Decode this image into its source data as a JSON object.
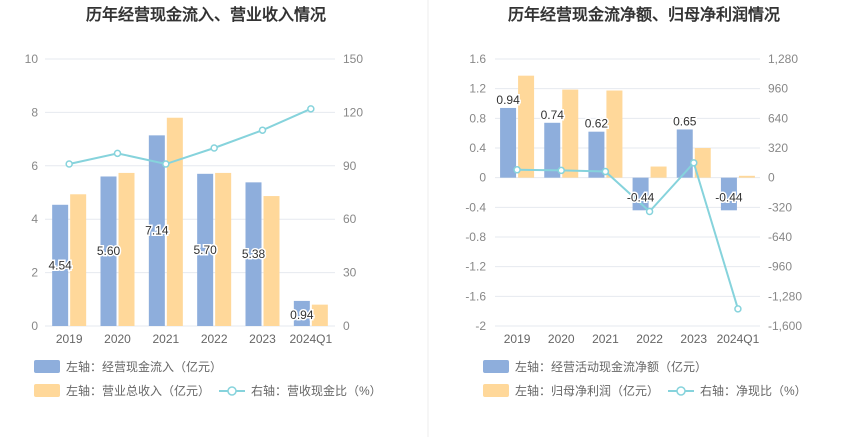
{
  "colors": {
    "bar_primary": "#8EAEDC",
    "bar_secondary": "#FFD89A",
    "line": "#86D3DC",
    "grid": "#E6E9EF",
    "divider": "#EEEEEE"
  },
  "chart_data": [
    {
      "type": "bar",
      "title": "历年经营现金流入、营业收入情况",
      "categories": [
        "2019",
        "2020",
        "2021",
        "2022",
        "2023",
        "2024Q1"
      ],
      "ylim_left": [
        0,
        10
      ],
      "yticks_left": [
        0,
        2,
        4,
        6,
        8,
        10
      ],
      "ylim_right": [
        0,
        150
      ],
      "yticks_right": [
        0,
        30,
        60,
        90,
        120,
        150
      ],
      "grid": true,
      "legend_position": "bottom-left",
      "series": [
        {
          "name": "左轴：经营现金流入（亿元）",
          "type": "bar",
          "axis": "left",
          "values": [
            4.54,
            5.6,
            7.14,
            5.7,
            5.38,
            0.94
          ],
          "labels": [
            "4.54",
            "5.60",
            "7.14",
            "5.70",
            "5.38",
            "0.94"
          ]
        },
        {
          "name": "左轴：营业总收入（亿元）",
          "type": "bar",
          "axis": "right",
          "values": [
            74,
            86,
            117,
            86,
            73,
            12
          ]
        },
        {
          "name": "右轴：营收现金比（%）",
          "type": "line",
          "axis": "right",
          "values": [
            91,
            97,
            91,
            100,
            110,
            122
          ]
        }
      ]
    },
    {
      "type": "bar",
      "title": "历年经营现金流净额、归母净利润情况",
      "categories": [
        "2019",
        "2020",
        "2021",
        "2022",
        "2023",
        "2024Q1"
      ],
      "ylim_left": [
        -2,
        1.6
      ],
      "yticks_left": [
        "-2",
        "-1.6",
        "-1.2",
        "-0.8",
        "-0.4",
        "0",
        "0.4",
        "0.8",
        "1.2",
        "1.6"
      ],
      "ylim_right": [
        -1600,
        1280
      ],
      "yticks_right": [
        "-1,600",
        "-1,280",
        "-960",
        "-640",
        "-320",
        "0",
        "320",
        "640",
        "960",
        "1,280"
      ],
      "grid": true,
      "legend_position": "bottom-left",
      "series": [
        {
          "name": "左轴：经营活动现金流净额（亿元）",
          "type": "bar",
          "axis": "left",
          "values": [
            0.94,
            0.74,
            0.62,
            -0.44,
            0.65,
            -0.44
          ],
          "labels": [
            "0.94",
            "0.74",
            "0.62",
            "-0.44",
            "0.65",
            "-0.44"
          ]
        },
        {
          "name": "左轴：归母净利润（亿元）",
          "type": "bar",
          "axis": "right",
          "values": [
            1100,
            950,
            940,
            120,
            320,
            20
          ]
        },
        {
          "name": "右轴：净现比（%）",
          "type": "line",
          "axis": "right",
          "values": [
            85,
            78,
            66,
            -365,
            160,
            -1415
          ]
        }
      ]
    }
  ]
}
